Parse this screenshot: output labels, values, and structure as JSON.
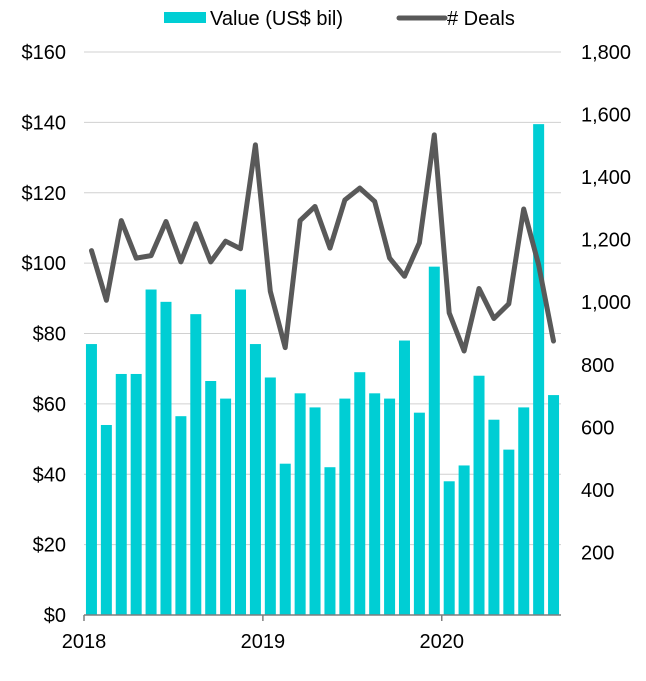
{
  "chart_data": {
    "type": "bar+line",
    "title": "",
    "legend": {
      "placement": "top-center",
      "entries": [
        {
          "name": "Value (US$ bil)",
          "type": "bar",
          "color": "#00CED4"
        },
        {
          "name": "# Deals",
          "type": "line",
          "color": "#595959"
        }
      ]
    },
    "x_tick_labels": [
      "2018",
      "2019",
      "2020"
    ],
    "x_tick_month_index": [
      0,
      12,
      24
    ],
    "months": [
      "2018-01",
      "2018-02",
      "2018-03",
      "2018-04",
      "2018-05",
      "2018-06",
      "2018-07",
      "2018-08",
      "2018-09",
      "2018-10",
      "2018-11",
      "2018-12",
      "2019-01",
      "2019-02",
      "2019-03",
      "2019-04",
      "2019-05",
      "2019-06",
      "2019-07",
      "2019-08",
      "2019-09",
      "2019-10",
      "2019-11",
      "2019-12",
      "2020-01",
      "2020-02",
      "2020-03",
      "2020-04",
      "2020-05",
      "2020-06",
      "2020-07",
      "2020-08"
    ],
    "y_left": {
      "label": "Value (US$ bil)",
      "range": [
        0,
        160
      ],
      "ticks": [
        0,
        20,
        40,
        60,
        80,
        100,
        120,
        140,
        160
      ],
      "tick_labels": [
        "$0",
        "$20",
        "$40",
        "$60",
        "$80",
        "$100",
        "$120",
        "$140",
        "$160"
      ]
    },
    "y_right": {
      "label": "# Deals",
      "range": [
        0,
        1800
      ],
      "ticks": [
        200,
        400,
        600,
        800,
        1000,
        1200,
        1400,
        1600,
        1800
      ],
      "tick_labels": [
        "200",
        "400",
        "600",
        "800",
        "1,000",
        "1,200",
        "1,400",
        "1,600",
        "1,800"
      ]
    },
    "grid": "horizontal",
    "series": [
      {
        "name": "Value (US$ bil)",
        "type": "bar",
        "axis": "left",
        "color": "#00CED4",
        "values": [
          77,
          54,
          68.5,
          68.5,
          92.5,
          89,
          56.5,
          85.5,
          66.5,
          61.5,
          92.5,
          77,
          67.5,
          43,
          63,
          59,
          42,
          61.5,
          69,
          63,
          61.5,
          78,
          57.5,
          99,
          38,
          42.5,
          68,
          55.5,
          47,
          59,
          139.5,
          62.5
        ]
      },
      {
        "name": "# Deals",
        "type": "line",
        "axis": "right",
        "color": "#595959",
        "values": [
          1165,
          1006,
          1261,
          1141,
          1149,
          1258,
          1129,
          1251,
          1129,
          1195,
          1171,
          1503,
          1035,
          855,
          1261,
          1306,
          1173,
          1327,
          1365,
          1322,
          1141,
          1083,
          1190,
          1535,
          966,
          844,
          1044,
          948,
          995,
          1298,
          1120,
          876
        ]
      }
    ]
  }
}
